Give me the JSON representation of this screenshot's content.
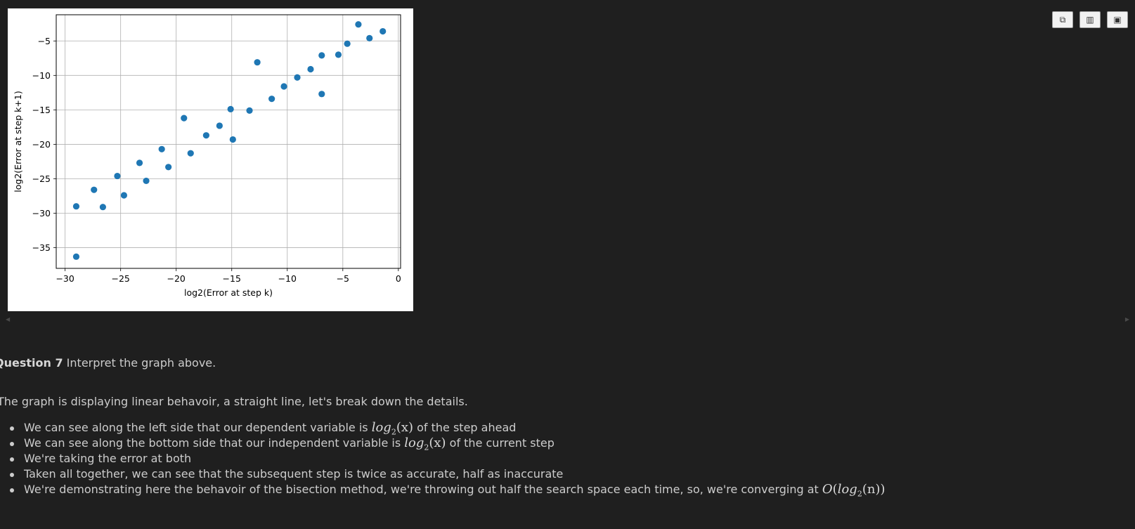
{
  "toolbar": {
    "buttons": [
      {
        "name": "copy-icon",
        "glyph": "⧉"
      },
      {
        "name": "chart-icon",
        "glyph": "▥"
      },
      {
        "name": "save-icon",
        "glyph": "▣"
      }
    ]
  },
  "chart_data": {
    "type": "scatter",
    "title": "",
    "xlabel": "log2(Error at step k)",
    "ylabel": "log2(Error at step k+1)",
    "xlim": [
      -30.8,
      0.2
    ],
    "ylim": [
      -38.0,
      -1.2
    ],
    "xticks": [
      -30,
      -25,
      -20,
      -15,
      -10,
      -5,
      0
    ],
    "xtick_labels": [
      "−30",
      "−25",
      "−20",
      "−15",
      "−10",
      "−5",
      "0"
    ],
    "yticks": [
      -35,
      -30,
      -25,
      -20,
      -15,
      -10,
      -5
    ],
    "ytick_labels": [
      "−35",
      "−30",
      "−25",
      "−20",
      "−15",
      "−10",
      "−5"
    ],
    "grid": true,
    "marker_color": "#1f77b4",
    "points": [
      [
        -29.0,
        -36.3
      ],
      [
        -29.0,
        -29.0
      ],
      [
        -27.4,
        -26.6
      ],
      [
        -26.6,
        -29.1
      ],
      [
        -25.3,
        -24.6
      ],
      [
        -24.7,
        -27.4
      ],
      [
        -23.3,
        -22.7
      ],
      [
        -22.7,
        -25.3
      ],
      [
        -21.3,
        -20.7
      ],
      [
        -20.7,
        -23.3
      ],
      [
        -19.3,
        -16.2
      ],
      [
        -18.7,
        -21.3
      ],
      [
        -17.3,
        -18.7
      ],
      [
        -16.1,
        -17.3
      ],
      [
        -15.1,
        -14.9
      ],
      [
        -14.9,
        -19.3
      ],
      [
        -13.4,
        -15.1
      ],
      [
        -12.7,
        -8.1
      ],
      [
        -11.4,
        -13.4
      ],
      [
        -10.3,
        -11.6
      ],
      [
        -9.1,
        -10.3
      ],
      [
        -7.9,
        -9.1
      ],
      [
        -6.9,
        -7.1
      ],
      [
        -6.9,
        -12.7
      ],
      [
        -5.4,
        -7.0
      ],
      [
        -4.6,
        -5.4
      ],
      [
        -3.6,
        -2.6
      ],
      [
        -2.6,
        -4.6
      ],
      [
        -1.4,
        -3.6
      ]
    ]
  },
  "markdown": {
    "question_label": "Question 7",
    "question_text": " Interpret the graph above.",
    "intro": "The graph is displaying linear behavoir, a straight line, let's break down the details.",
    "b1_pre": "We can see along the left side that our dependent variable is ",
    "b1_post": " of the step ahead",
    "b2_pre": "We can see along the bottom side that our independent variable is ",
    "b2_post": " of the current step",
    "b3": "We're taking the error at both",
    "b4": "Taken all together, we can see that the subsequent step is twice as accurate, half as inaccurate",
    "b5_pre": "We're demonstrating here the behavoir of the bisection method, we're throwing out half the search space each time, so, we're converging at ",
    "math_log": "log",
    "math_sub": "2",
    "math_arg_x": "(x)",
    "math_arg_n": "(n)",
    "math_O": "O"
  }
}
